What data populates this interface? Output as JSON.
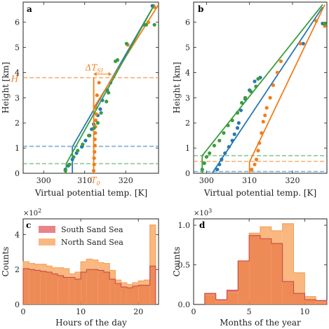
{
  "chart_data": [
    {
      "panel": "a",
      "type": "line",
      "xlabel": "Virtual potential temp. [K]",
      "ylabel": "Height [km]",
      "xlim": [
        295,
        328
      ],
      "ylim": [
        0,
        6.8
      ],
      "xticks": [
        300,
        310,
        320
      ],
      "yticks": [
        0,
        1,
        2,
        3,
        4,
        5,
        6
      ],
      "colors": {
        "blue": "#2878b5",
        "orange": "#f07e1b",
        "green": "#3a9e3a"
      },
      "series": [
        {
          "color": "blue",
          "points": [
            [
              305.3,
              0.15
            ],
            [
              306.0,
              0.3
            ],
            [
              307.0,
              0.55
            ],
            [
              308.0,
              0.8
            ],
            [
              309.3,
              1.05
            ],
            [
              310.2,
              1.3
            ],
            [
              311.2,
              1.5
            ],
            [
              311.7,
              1.75
            ],
            [
              312.2,
              1.95
            ],
            [
              313.2,
              2.3
            ],
            [
              313.8,
              2.55
            ],
            [
              314.3,
              2.9
            ],
            [
              315.5,
              3.3
            ],
            [
              316.3,
              3.6
            ],
            [
              324.5,
              5.9
            ],
            [
              326.5,
              6.65
            ]
          ],
          "fit": [
            [
              307.0,
              0
            ],
            [
              307.0,
              1.05
            ],
            [
              327.0,
              6.7
            ]
          ]
        },
        {
          "color": "orange",
          "points": [
            [
              312.2,
              0.1
            ],
            [
              312.3,
              0.35
            ],
            [
              312.3,
              0.6
            ],
            [
              312.4,
              0.85
            ],
            [
              312.5,
              1.1
            ],
            [
              312.5,
              1.35
            ],
            [
              312.6,
              1.6
            ],
            [
              312.6,
              1.85
            ],
            [
              312.7,
              2.1
            ],
            [
              312.8,
              2.35
            ],
            [
              312.8,
              2.6
            ],
            [
              313.0,
              3.1
            ],
            [
              313.5,
              3.6
            ],
            [
              320.5,
              5.1
            ],
            [
              325.5,
              6.0
            ],
            [
              327.0,
              6.6
            ]
          ],
          "fit": [
            [
              312.2,
              0
            ],
            [
              312.2,
              2.6
            ],
            [
              328.0,
              6.7
            ]
          ],
          "jump": {
            "x": 312.2,
            "y": [
              2.6,
              3.8
            ]
          }
        },
        {
          "color": "green",
          "points": [
            [
              305.3,
              0.1
            ],
            [
              306.3,
              0.35
            ],
            [
              307.3,
              0.65
            ],
            [
              308.3,
              0.9
            ],
            [
              309.5,
              1.15
            ],
            [
              311.0,
              1.5
            ],
            [
              312.3,
              1.8
            ],
            [
              313.2,
              2.0
            ],
            [
              314.0,
              2.4
            ],
            [
              315.3,
              2.85
            ],
            [
              315.8,
              3.2
            ],
            [
              317.5,
              4.45
            ],
            [
              318.0,
              4.5
            ],
            [
              320.2,
              5.15
            ],
            [
              325.0,
              5.9
            ],
            [
              327.0,
              5.9
            ]
          ],
          "fit": [
            [
              305.5,
              0
            ],
            [
              305.5,
              0.38
            ],
            [
              327.0,
              6.7
            ]
          ]
        }
      ],
      "hlines": [
        {
          "color": "blue",
          "y": 1.07
        },
        {
          "color": "orange",
          "y": 3.8
        },
        {
          "color": "green",
          "y": 0.38
        }
      ],
      "annotations": {
        "H": "H",
        "delta": "ΔT",
        "delta_sub": "SI",
        "T0": "T",
        "T0_sub": "0"
      }
    },
    {
      "panel": "b",
      "type": "line",
      "xlabel": "Virtual potential temp. [K]",
      "ylabel": "Height [km]",
      "xlim": [
        297,
        328
      ],
      "ylim": [
        0,
        6.8
      ],
      "xticks": [
        300,
        310,
        320
      ],
      "yticks": [
        0,
        1,
        2,
        3,
        4,
        5,
        6
      ],
      "colors": {
        "blue": "#2878b5",
        "orange": "#f07e1b",
        "green": "#3a9e3a"
      },
      "series": [
        {
          "color": "blue",
          "points": [
            [
              302.5,
              0.15
            ],
            [
              303.0,
              0.35
            ],
            [
              303.5,
              0.55
            ],
            [
              304.3,
              0.8
            ],
            [
              305.2,
              1.05
            ],
            [
              306.0,
              1.3
            ],
            [
              306.5,
              1.55
            ],
            [
              307.2,
              1.8
            ],
            [
              307.5,
              2.0
            ],
            [
              308.0,
              2.5
            ],
            [
              309.0,
              2.95
            ],
            [
              310.0,
              3.3
            ],
            [
              311.2,
              3.65
            ],
            [
              312.5,
              3.8
            ],
            [
              322.5,
              5.15
            ],
            [
              327.0,
              5.95
            ]
          ],
          "fit": [
            [
              301.5,
              0
            ],
            [
              301.5,
              0.05
            ],
            [
              327.0,
              6.6
            ]
          ]
        },
        {
          "color": "orange",
          "points": [
            [
              310.5,
              0.15
            ],
            [
              311.2,
              0.35
            ],
            [
              311.6,
              0.55
            ],
            [
              312.0,
              0.9
            ],
            [
              312.3,
              1.2
            ],
            [
              312.8,
              1.6
            ],
            [
              313.2,
              2.05
            ],
            [
              313.6,
              2.3
            ],
            [
              314.0,
              2.6
            ],
            [
              314.8,
              3.0
            ],
            [
              315.5,
              3.5
            ],
            [
              316.5,
              4.0
            ],
            [
              317.3,
              4.45
            ],
            [
              321.8,
              5.15
            ],
            [
              325.5,
              6.05
            ],
            [
              327.5,
              5.85
            ]
          ],
          "fit": [
            [
              310.0,
              0
            ],
            [
              310.0,
              0.45
            ],
            [
              327.5,
              6.7
            ]
          ]
        },
        {
          "color": "green",
          "points": [
            [
              299.0,
              0.15
            ],
            [
              299.5,
              0.4
            ],
            [
              300.0,
              0.65
            ],
            [
              300.7,
              0.8
            ],
            [
              301.8,
              1.1
            ],
            [
              303.0,
              1.3
            ],
            [
              304.0,
              1.6
            ],
            [
              305.0,
              1.9
            ],
            [
              306.0,
              2.1
            ],
            [
              307.2,
              2.4
            ],
            [
              308.2,
              2.8
            ],
            [
              309.0,
              3.0
            ],
            [
              310.3,
              3.25
            ],
            [
              311.5,
              3.45
            ],
            [
              312.0,
              3.75
            ],
            [
              327.5,
              5.95
            ]
          ],
          "fit": [
            [
              299.0,
              0
            ],
            [
              299.0,
              0.7
            ],
            [
              327.0,
              6.7
            ]
          ]
        }
      ],
      "hlines": [
        {
          "color": "blue",
          "y": 0.07
        },
        {
          "color": "orange",
          "y": 0.47
        },
        {
          "color": "green",
          "y": 0.7
        }
      ]
    },
    {
      "panel": "c",
      "type": "bar",
      "xlabel": "Hours of the day",
      "ylabel": "Counts",
      "multiplier": "×10",
      "multiplier_exp": "2",
      "xlim": [
        0,
        23.5
      ],
      "ylim": [
        0,
        4.9
      ],
      "xticks": [
        0,
        10,
        20
      ],
      "yticks": [
        0,
        2,
        4
      ],
      "bin_width": 1,
      "colors": {
        "South Sand Sea": "#e8757a",
        "North Sand Sea": "#f9b880",
        "overlap": "#ee8a55",
        "south_edge": "#c84b4b",
        "north_edge": "#f5a05a"
      },
      "series": [
        {
          "name": "South Sand Sea",
          "values": [
            2.05,
            2.0,
            1.95,
            1.9,
            1.85,
            1.75,
            1.65,
            1.55,
            1.55,
            1.45,
            1.85,
            2.0,
            2.0,
            1.95,
            1.85,
            1.45,
            1.2,
            1.0,
            0.95,
            1.05,
            1.1,
            1.1,
            2.2
          ]
        },
        {
          "name": "North Sand Sea",
          "values": [
            2.45,
            2.35,
            2.3,
            2.3,
            2.2,
            2.1,
            2.1,
            2.05,
            1.75,
            1.85,
            2.45,
            2.6,
            2.55,
            2.4,
            2.35,
            1.95,
            1.4,
            1.25,
            1.15,
            1.25,
            1.35,
            1.4,
            4.55
          ]
        }
      ]
    },
    {
      "panel": "d",
      "type": "bar",
      "xlabel": "Months of the year",
      "ylabel": "Counts",
      "multiplier": "×10",
      "multiplier_exp": "3",
      "xlim": [
        0,
        12
      ],
      "ylim": [
        0,
        1.08
      ],
      "xticks": [
        0,
        5,
        10
      ],
      "yticks": [
        0.0,
        0.5,
        1.0
      ],
      "bin_edges": [
        1,
        2,
        3,
        4,
        5,
        6,
        7,
        8,
        9,
        10,
        11,
        12
      ],
      "colors": {
        "South Sand Sea": "#e8757a",
        "North Sand Sea": "#f9b880",
        "overlap": "#ee8a55",
        "south_edge": "#c84b4b",
        "north_edge": "#f5a05a"
      },
      "series": [
        {
          "name": "South Sand Sea",
          "values": [
            0.14,
            0.06,
            0.18,
            0.55,
            0.87,
            0.83,
            0.77,
            0.29,
            0.14,
            0.06,
            0.05
          ]
        },
        {
          "name": "North Sand Sea",
          "values": [
            0.12,
            0.04,
            0.15,
            0.55,
            0.9,
            0.98,
            0.93,
            1.02,
            0.4,
            0.1,
            0.03
          ]
        }
      ]
    }
  ]
}
